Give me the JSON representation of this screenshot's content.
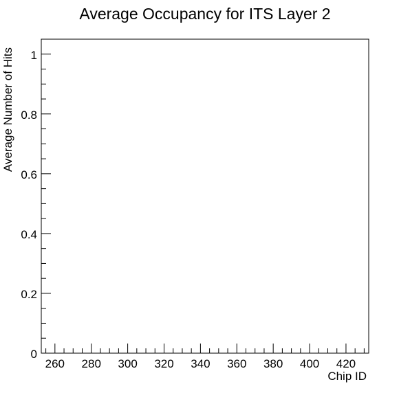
{
  "chart_data": {
    "type": "bar",
    "title": "Average Occupancy for ITS Layer 2",
    "xlabel": "Chip ID",
    "ylabel": "Average Number of Hits",
    "xlim": [
      252.5,
      432.5
    ],
    "ylim": [
      0,
      1.05
    ],
    "x_major_ticks": [
      260,
      280,
      300,
      320,
      340,
      360,
      380,
      400,
      420
    ],
    "x_tick_labels": [
      "260",
      "280",
      "300",
      "320",
      "340",
      "360",
      "380",
      "400",
      "420"
    ],
    "y_major_ticks": [
      0,
      0.2,
      0.4,
      0.6,
      0.8,
      1
    ],
    "y_tick_labels": [
      "0",
      "0.2",
      "0.4",
      "0.6",
      "0.8",
      "1"
    ],
    "grid": false,
    "series": [
      {
        "values": []
      }
    ]
  }
}
